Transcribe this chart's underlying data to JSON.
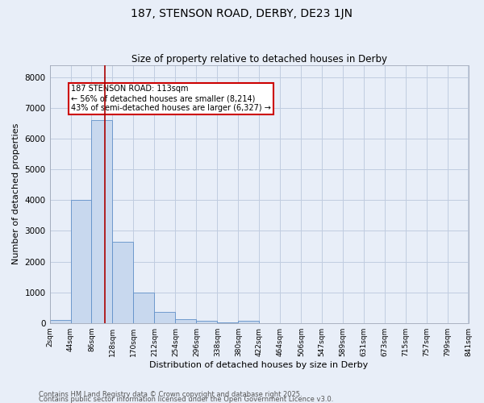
{
  "title": "187, STENSON ROAD, DERBY, DE23 1JN",
  "subtitle": "Size of property relative to detached houses in Derby",
  "xlabel": "Distribution of detached houses by size in Derby",
  "ylabel": "Number of detached properties",
  "bar_color": "#c8d8ee",
  "bar_edge_color": "#6090c8",
  "grid_color": "#c8d8ee",
  "background_color": "#e8eef8",
  "bin_edges": [
    2,
    44,
    86,
    128,
    170,
    212,
    254,
    296,
    338,
    380,
    422,
    464,
    506,
    547,
    589,
    631,
    673,
    715,
    757,
    799,
    841
  ],
  "bar_heights": [
    100,
    4000,
    6600,
    2650,
    1000,
    350,
    130,
    70,
    30,
    60,
    0,
    0,
    0,
    0,
    0,
    0,
    0,
    0,
    0,
    0
  ],
  "property_size": 113,
  "vline_color": "#aa0000",
  "annotation_text": "187 STENSON ROAD: 113sqm\n← 56% of detached houses are smaller (8,214)\n43% of semi-detached houses are larger (6,327) →",
  "annotation_box_color": "#ffffff",
  "annotation_box_edge_color": "#cc0000",
  "ylim": [
    0,
    8400
  ],
  "yticks": [
    0,
    1000,
    2000,
    3000,
    4000,
    5000,
    6000,
    7000,
    8000
  ],
  "footnote1": "Contains HM Land Registry data © Crown copyright and database right 2025.",
  "footnote2": "Contains public sector information licensed under the Open Government Licence v3.0.",
  "tick_labels": [
    "2sqm",
    "44sqm",
    "86sqm",
    "128sqm",
    "170sqm",
    "212sqm",
    "254sqm",
    "296sqm",
    "338sqm",
    "380sqm",
    "422sqm",
    "464sqm",
    "506sqm",
    "547sqm",
    "589sqm",
    "631sqm",
    "673sqm",
    "715sqm",
    "757sqm",
    "799sqm",
    "841sqm"
  ]
}
